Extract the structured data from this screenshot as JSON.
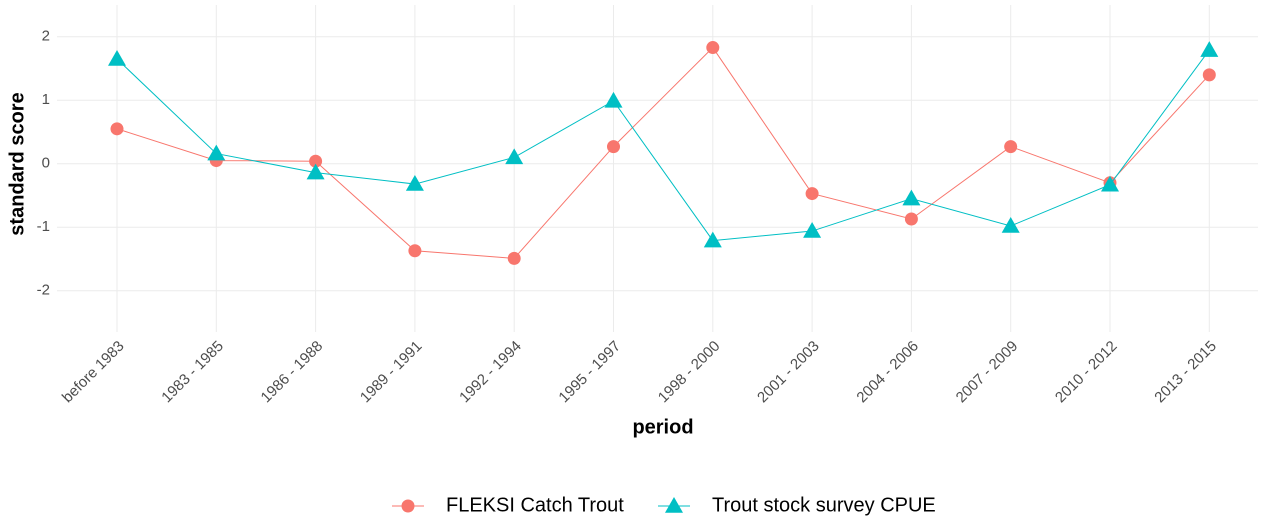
{
  "chart_data": {
    "type": "line",
    "x_label": "period",
    "y_label": "standard score",
    "categories": [
      "before 1983",
      "1983 - 1985",
      "1986 - 1988",
      "1989 - 1991",
      "1992 - 1994",
      "1995 - 1997",
      "1998 - 2000",
      "2001 - 2003",
      "2004 - 2006",
      "2007 - 2009",
      "2010 - 2012",
      "2013 - 2015"
    ],
    "series": [
      {
        "name": "FLEKSI Catch Trout",
        "color": "#F8766D",
        "marker": "circle",
        "values": [
          0.55,
          0.05,
          0.04,
          -1.37,
          -1.49,
          0.27,
          1.83,
          -0.47,
          -0.87,
          0.27,
          -0.3,
          1.4
        ]
      },
      {
        "name": "Trout stock survey CPUE",
        "color": "#00BFC4",
        "marker": "triangle",
        "values": [
          1.65,
          0.16,
          -0.14,
          -0.32,
          0.1,
          0.99,
          -1.21,
          -1.06,
          -0.55,
          -0.98,
          -0.33,
          1.79
        ]
      }
    ],
    "ylim": [
      -2.65,
      2.5
    ],
    "yticks": [
      -2,
      -1,
      0,
      1,
      2
    ],
    "grid": true,
    "legend": "bottom"
  }
}
